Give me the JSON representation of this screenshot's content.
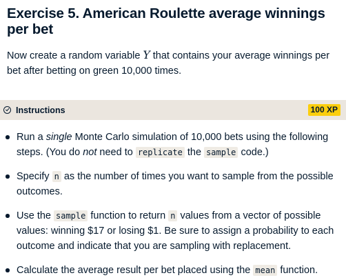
{
  "exercise": {
    "title": "Exercise 5. American Roulette average winnings per bet",
    "description": {
      "before": "Now create a random variable ",
      "variable": "Y",
      "after": " that contains your average winnings per bet after betting on green 10,000 times."
    }
  },
  "instructions": {
    "label": "Instructions",
    "xp": "100 XP",
    "steps": [
      {
        "t1": "Run a ",
        "em1": "single",
        "t2": " Monte Carlo simulation of 10,000 bets using the following steps. (You do ",
        "em2": "not",
        "t3": " need to ",
        "code1": "replicate",
        "t4": " the ",
        "code2": "sample",
        "t5": " code.)"
      },
      {
        "t1": "Specify ",
        "code1": "n",
        "t2": " as the number of times you want to sample from the possible outcomes."
      },
      {
        "t1": "Use the ",
        "code1": "sample",
        "t2": " function to return ",
        "code2": "n",
        "t3": " values from a vector of possible values: winning $17 or losing $1. Be sure to assign a probability to each outcome and indicate that you are sampling with replacement."
      },
      {
        "t1": "Calculate the average result per bet placed using the ",
        "code1": "mean",
        "t2": " function."
      }
    ]
  }
}
